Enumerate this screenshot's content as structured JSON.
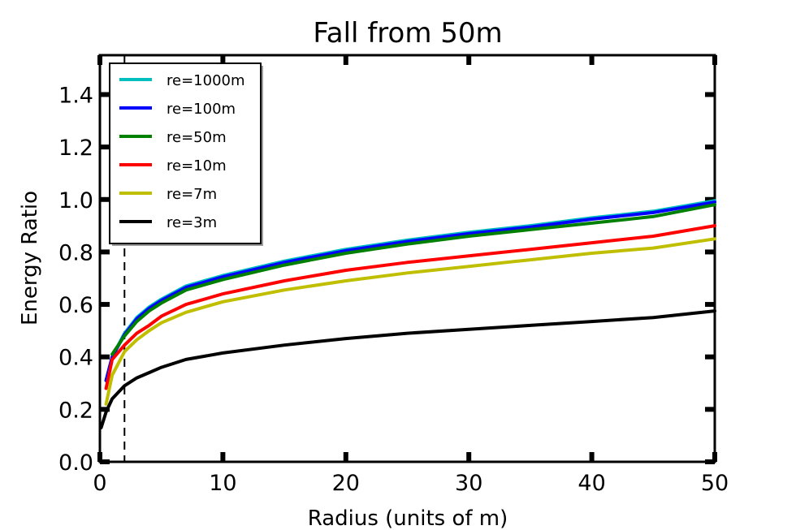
{
  "chart_data": {
    "type": "line",
    "title": "Fall from 50m",
    "xlabel": "Radius (units of m)",
    "ylabel": "Energy Ratio",
    "xlim": [
      0,
      50
    ],
    "ylim": [
      0,
      1.55
    ],
    "xticks": [
      0,
      10,
      20,
      30,
      40,
      50
    ],
    "xtick_labels": [
      "0",
      "10",
      "20",
      "30",
      "40",
      "50"
    ],
    "yticks": [
      0.0,
      0.2,
      0.4,
      0.6,
      0.8,
      1.0,
      1.2,
      1.4
    ],
    "ytick_labels": [
      "0.0",
      "0.2",
      "0.4",
      "0.6",
      "0.8",
      "1.0",
      "1.2",
      "1.4"
    ],
    "grid": false,
    "legend_position": "top-left",
    "vline": {
      "x": 2,
      "style": "dashed",
      "color": "#000000"
    },
    "series": [
      {
        "name": "re=1000m",
        "color": "#00bfbf",
        "x": [
          0.5,
          1,
          2,
          3,
          4,
          5,
          7,
          10,
          15,
          20,
          25,
          30,
          35,
          40,
          45,
          50
        ],
        "y": [
          0.31,
          0.4,
          0.49,
          0.55,
          0.59,
          0.62,
          0.67,
          0.71,
          0.765,
          0.81,
          0.845,
          0.875,
          0.9,
          0.93,
          0.955,
          0.995
        ]
      },
      {
        "name": "re=100m",
        "color": "#0000ff",
        "x": [
          0.5,
          1,
          2,
          3,
          4,
          5,
          7,
          10,
          15,
          20,
          25,
          30,
          35,
          40,
          45,
          50
        ],
        "y": [
          0.31,
          0.4,
          0.485,
          0.545,
          0.585,
          0.615,
          0.665,
          0.705,
          0.76,
          0.805,
          0.84,
          0.87,
          0.895,
          0.925,
          0.95,
          0.99
        ]
      },
      {
        "name": "re=50m",
        "color": "#008000",
        "x": [
          1,
          2,
          3,
          4,
          5,
          7,
          10,
          15,
          20,
          25,
          30,
          35,
          40,
          45,
          50
        ],
        "y": [
          0.41,
          0.48,
          0.535,
          0.575,
          0.605,
          0.655,
          0.695,
          0.75,
          0.795,
          0.83,
          0.86,
          0.885,
          0.91,
          0.935,
          0.98
        ]
      },
      {
        "name": "re=10m",
        "color": "#ff0000",
        "x": [
          0.5,
          1,
          2,
          3,
          4,
          5,
          7,
          10,
          15,
          20,
          25,
          30,
          35,
          40,
          45,
          50
        ],
        "y": [
          0.28,
          0.39,
          0.445,
          0.49,
          0.52,
          0.555,
          0.6,
          0.64,
          0.69,
          0.73,
          0.76,
          0.785,
          0.81,
          0.835,
          0.86,
          0.9
        ]
      },
      {
        "name": "re=7m",
        "color": "#bfbf00",
        "x": [
          0.5,
          1,
          2,
          3,
          4,
          5,
          7,
          10,
          15,
          20,
          25,
          30,
          35,
          40,
          45,
          50
        ],
        "y": [
          0.22,
          0.33,
          0.42,
          0.465,
          0.5,
          0.53,
          0.57,
          0.61,
          0.655,
          0.69,
          0.72,
          0.745,
          0.77,
          0.795,
          0.815,
          0.85
        ]
      },
      {
        "name": "re=3m",
        "color": "#000000",
        "x": [
          0.1,
          0.5,
          1,
          2,
          3,
          4,
          5,
          7,
          10,
          15,
          20,
          25,
          30,
          35,
          40,
          45,
          50
        ],
        "y": [
          0.13,
          0.19,
          0.24,
          0.29,
          0.32,
          0.34,
          0.36,
          0.39,
          0.415,
          0.445,
          0.47,
          0.49,
          0.505,
          0.52,
          0.535,
          0.55,
          0.575
        ]
      }
    ]
  }
}
